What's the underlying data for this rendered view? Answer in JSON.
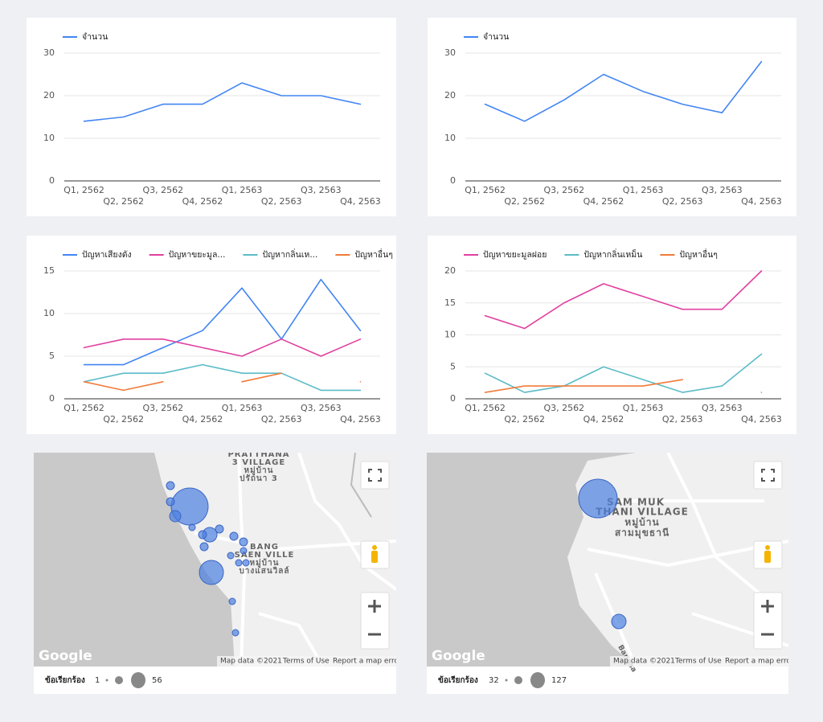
{
  "chart_data": [
    {
      "type": "line",
      "categories": [
        "Q1, 2562",
        "Q2, 2562",
        "Q3, 2562",
        "Q4, 2562",
        "Q1, 2563",
        "Q2, 2563",
        "Q3, 2563",
        "Q4, 2563"
      ],
      "series": [
        {
          "name": "จำนวน",
          "color": "#4285f4",
          "values": [
            14,
            15,
            18,
            18,
            23,
            20,
            20,
            18
          ]
        }
      ],
      "ylim": [
        0,
        30
      ],
      "yticks": [
        0,
        10,
        20,
        30
      ],
      "grid": true
    },
    {
      "type": "line",
      "categories": [
        "Q1, 2562",
        "Q2, 2562",
        "Q3, 2562",
        "Q4, 2562",
        "Q1, 2563",
        "Q2, 2563",
        "Q3, 2563",
        "Q4, 2563"
      ],
      "series": [
        {
          "name": "จำนวน",
          "color": "#4285f4",
          "values": [
            18,
            14,
            19,
            25,
            21,
            18,
            16,
            28
          ]
        }
      ],
      "ylim": [
        0,
        30
      ],
      "yticks": [
        0,
        10,
        20,
        30
      ],
      "grid": true
    },
    {
      "type": "line",
      "categories": [
        "Q1, 2562",
        "Q2, 2562",
        "Q3, 2562",
        "Q4, 2562",
        "Q1, 2563",
        "Q2, 2563",
        "Q3, 2563",
        "Q4, 2563"
      ],
      "series": [
        {
          "name": "ปัญหาเสียงดัง",
          "color": "#4285f4",
          "values": [
            4,
            4,
            6,
            8,
            13,
            7,
            14,
            8
          ]
        },
        {
          "name": "ปัญหาขยะมูล...",
          "color": "#e040a0",
          "values": [
            6,
            7,
            7,
            6,
            5,
            7,
            5,
            7
          ]
        },
        {
          "name": "ปัญหากลิ่นเห...",
          "color": "#5bbcc8",
          "values": [
            2,
            3,
            3,
            4,
            3,
            3,
            1,
            1
          ]
        },
        {
          "name": "ปัญหาอื่นๆ",
          "color": "#f07b3a",
          "values": [
            2,
            1,
            2,
            null,
            2,
            3,
            null,
            2
          ]
        }
      ],
      "ylim": [
        0,
        15
      ],
      "yticks": [
        0,
        5,
        10,
        15
      ],
      "grid": true
    },
    {
      "type": "line",
      "categories": [
        "Q1, 2562",
        "Q2, 2562",
        "Q3, 2562",
        "Q4, 2562",
        "Q1, 2563",
        "Q2, 2563",
        "Q3, 2563",
        "Q4, 2563"
      ],
      "series": [
        {
          "name": "ปัญหาขยะมูลฝอย",
          "color": "#e040a0",
          "values": [
            13,
            11,
            15,
            18,
            16,
            14,
            14,
            20
          ]
        },
        {
          "name": "ปัญหากลิ่นเหม็น",
          "color": "#5bbcc8",
          "values": [
            4,
            1,
            2,
            5,
            3,
            1,
            2,
            7
          ]
        },
        {
          "name": "ปัญหาอื่นๆ",
          "color": "#f07b3a",
          "values": [
            1,
            2,
            2,
            2,
            2,
            3,
            null,
            1
          ]
        }
      ],
      "ylim": [
        0,
        20
      ],
      "yticks": [
        0,
        5,
        10,
        15,
        20
      ],
      "grid": true
    }
  ],
  "maps": [
    {
      "legend_title": "ข้อเรียกร้อง",
      "min": 1,
      "max": 56,
      "places": [
        "PRATTHANA",
        "3 VILLAGE",
        "หมู่บ้าน",
        "ปรัถนา 3",
        "BANG",
        "SAEN VILLE",
        "หมู่บ้าน",
        "บางแสนวิลล์"
      ],
      "logo": "Google",
      "map_data": "Map data ©2021",
      "terms": "Terms of Use",
      "report": "Report a map error"
    },
    {
      "legend_title": "ข้อเรียกร้อง",
      "min": 32,
      "max": 127,
      "places": [
        "SAM MUK",
        "THANI VILLAGE",
        "หมู่บ้าน",
        "สามมุขธานี",
        "Bangsa"
      ],
      "logo": "Google",
      "map_data": "Map data ©2021",
      "terms": "Terms of Use",
      "report": "Report a map error"
    }
  ]
}
